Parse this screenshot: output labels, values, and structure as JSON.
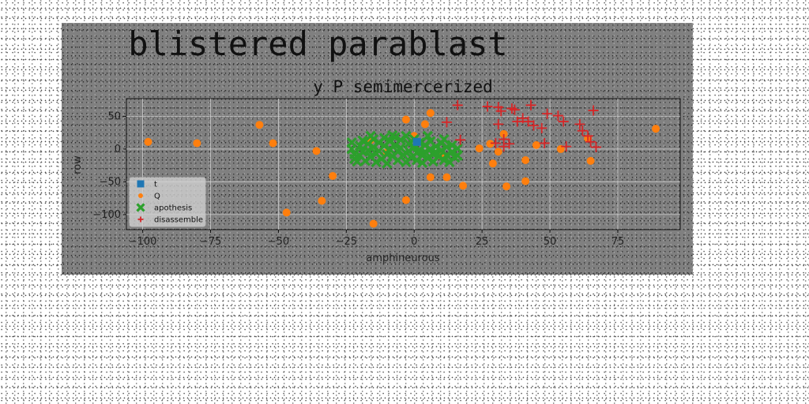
{
  "figure": {
    "suptitle": "blistered parablast"
  },
  "chart_data": {
    "type": "scatter",
    "title": "y P semimercerized",
    "xlabel": "amphineurous",
    "ylabel": "row",
    "xlim": [
      -106,
      98
    ],
    "ylim": [
      -123,
      77
    ],
    "xticks": [
      -100,
      -75,
      -50,
      -25,
      0,
      25,
      50,
      75
    ],
    "yticks": [
      -100,
      -50,
      0,
      50
    ],
    "grid": true,
    "legend": "lower-left",
    "series": [
      {
        "name": "t",
        "marker": "square",
        "color": "#1f77b4",
        "points": [
          [
            1,
            11
          ]
        ]
      },
      {
        "name": "Q",
        "marker": "circle",
        "color": "#ff7f0e",
        "points": [
          [
            -98,
            11
          ],
          [
            -80,
            9
          ],
          [
            -57,
            37
          ],
          [
            -52,
            9
          ],
          [
            -47,
            -97
          ],
          [
            -36,
            -3
          ],
          [
            -34,
            -79
          ],
          [
            -30,
            -41
          ],
          [
            -15,
            -114
          ],
          [
            -16,
            14
          ],
          [
            -3,
            45
          ],
          [
            -3,
            -78
          ],
          [
            4,
            38
          ],
          [
            6,
            55
          ],
          [
            6,
            -43
          ],
          [
            12,
            -43
          ],
          [
            18,
            -56
          ],
          [
            24,
            1
          ],
          [
            28,
            8
          ],
          [
            29,
            -22
          ],
          [
            31,
            -4
          ],
          [
            33,
            23
          ],
          [
            34,
            -57
          ],
          [
            41,
            -17
          ],
          [
            41,
            -49
          ],
          [
            45,
            6
          ],
          [
            54,
            0
          ],
          [
            64,
            16
          ],
          [
            65,
            -18
          ],
          [
            89,
            31
          ],
          [
            10,
            -11
          ],
          [
            -10,
            -5
          ],
          [
            0,
            20
          ]
        ]
      },
      {
        "name": "apothesis",
        "marker": "x",
        "color": "#2ca02c",
        "points": [
          [
            -23,
            10
          ],
          [
            -23,
            0
          ],
          [
            -22,
            -8
          ],
          [
            -22,
            -15
          ],
          [
            -20,
            5
          ],
          [
            -20,
            -10
          ],
          [
            -19,
            13
          ],
          [
            -19,
            -4
          ],
          [
            -18,
            -18
          ],
          [
            -17,
            8
          ],
          [
            -17,
            -2
          ],
          [
            -16,
            -12
          ],
          [
            -15,
            15
          ],
          [
            -15,
            3
          ],
          [
            -14,
            -7
          ],
          [
            -14,
            -20
          ],
          [
            -13,
            10
          ],
          [
            -13,
            -3
          ],
          [
            -12,
            -15
          ],
          [
            -11,
            17
          ],
          [
            -11,
            5
          ],
          [
            -10,
            -8
          ],
          [
            -10,
            -22
          ],
          [
            -9,
            12
          ],
          [
            -9,
            0
          ],
          [
            -8,
            -11
          ],
          [
            -7,
            18
          ],
          [
            -7,
            6
          ],
          [
            -6,
            -4
          ],
          [
            -6,
            -17
          ],
          [
            -5,
            14
          ],
          [
            -5,
            2
          ],
          [
            -4,
            -9
          ],
          [
            -3,
            20
          ],
          [
            -3,
            -20
          ],
          [
            -2,
            8
          ],
          [
            -2,
            -3
          ],
          [
            -1,
            -13
          ],
          [
            0,
            15
          ],
          [
            0,
            3
          ],
          [
            1,
            -6
          ],
          [
            1,
            -17
          ],
          [
            2,
            10
          ],
          [
            2,
            -1
          ],
          [
            3,
            -10
          ],
          [
            3,
            -21
          ],
          [
            4,
            6
          ],
          [
            4,
            -4
          ],
          [
            5,
            -14
          ],
          [
            6,
            12
          ],
          [
            6,
            0
          ],
          [
            7,
            -8
          ],
          [
            7,
            -19
          ],
          [
            8,
            4
          ],
          [
            8,
            -5
          ],
          [
            9,
            -12
          ],
          [
            10,
            9
          ],
          [
            10,
            -2
          ],
          [
            11,
            -17
          ],
          [
            12,
            3
          ],
          [
            12,
            -9
          ],
          [
            13,
            -20
          ],
          [
            14,
            6
          ],
          [
            14,
            -4
          ],
          [
            15,
            -13
          ],
          [
            16,
            1
          ],
          [
            16,
            -10
          ],
          [
            -21,
            -19
          ],
          [
            -16,
            20
          ],
          [
            -8,
            21
          ],
          [
            5,
            20
          ],
          [
            11,
            15
          ]
        ]
      },
      {
        "name": "disassemble",
        "marker": "plus",
        "color": "#d62728",
        "points": [
          [
            16,
            67
          ],
          [
            27,
            65
          ],
          [
            31,
            64
          ],
          [
            32,
            58
          ],
          [
            36,
            62
          ],
          [
            37,
            60
          ],
          [
            43,
            67
          ],
          [
            49,
            54
          ],
          [
            53,
            51
          ],
          [
            66,
            59
          ],
          [
            44,
            36
          ],
          [
            38,
            42
          ],
          [
            40,
            47
          ],
          [
            31,
            38
          ],
          [
            47,
            32
          ],
          [
            55,
            42
          ],
          [
            61,
            38
          ],
          [
            62,
            28
          ],
          [
            65,
            11
          ],
          [
            67,
            3
          ],
          [
            56,
            4
          ],
          [
            48,
            9
          ],
          [
            35,
            8
          ],
          [
            33,
            15
          ],
          [
            30,
            9
          ],
          [
            17,
            14
          ],
          [
            12,
            41
          ],
          [
            33,
            4
          ],
          [
            42,
            42
          ],
          [
            64,
            20
          ]
        ]
      }
    ]
  }
}
